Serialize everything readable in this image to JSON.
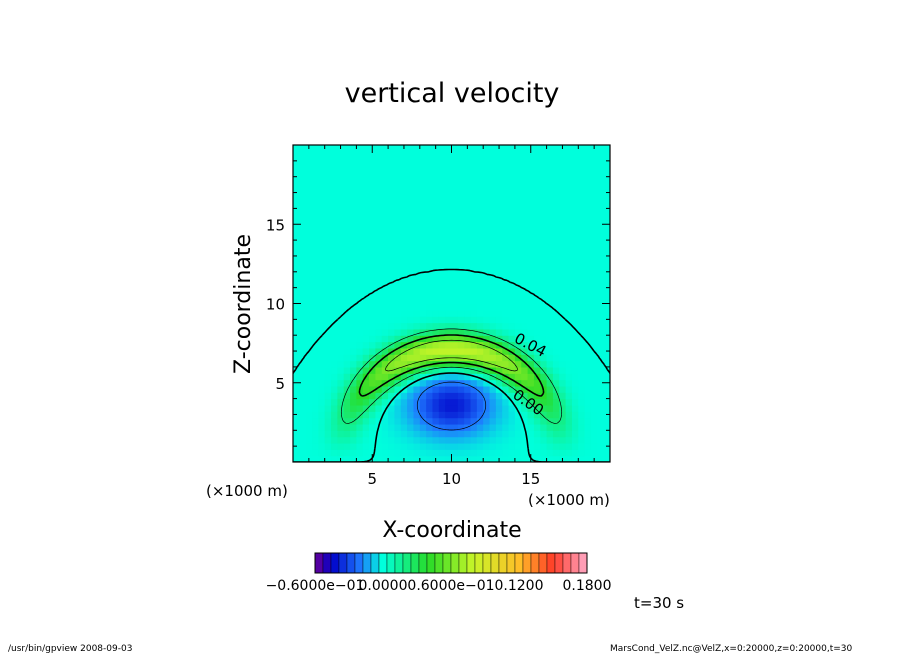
{
  "chart_data": {
    "type": "heatmap",
    "title": "vertical velocity",
    "xlabel": "X-coordinate",
    "ylabel": "Z-coordinate",
    "x_unit": "(×1000 m)",
    "y_unit": "(×1000 m)",
    "xlim": [
      0,
      20
    ],
    "ylim": [
      0,
      20
    ],
    "x_ticks": [
      5,
      10,
      15
    ],
    "y_ticks": [
      5,
      10,
      15
    ],
    "field": {
      "updraft_center_x": 10,
      "updraft_max_z": 7.1,
      "updraft_max_value": 0.08,
      "updraft_radial_width": 1.1,
      "downdraft_center": [
        10,
        3.6
      ],
      "downdraft_min_value": -0.04,
      "zero_contour_radius": 6.8,
      "zero_contour_center": [
        10,
        0
      ]
    },
    "contours": [
      {
        "label": "0.04",
        "value": 0.04
      },
      {
        "label": "0.00",
        "value": 0.0
      }
    ],
    "colorbar": {
      "tick_labels": [
        "−0.6000e−01",
        "0.0000",
        "0.6000e−01",
        "0.1200",
        "0.1800"
      ]
    },
    "time_label": "t=30 s"
  },
  "footer": {
    "left": "/usr/bin/gpview   2008-09-03",
    "right": "MarsCond_VelZ.nc@VelZ,x=0:20000,z=0:20000,t=30"
  }
}
